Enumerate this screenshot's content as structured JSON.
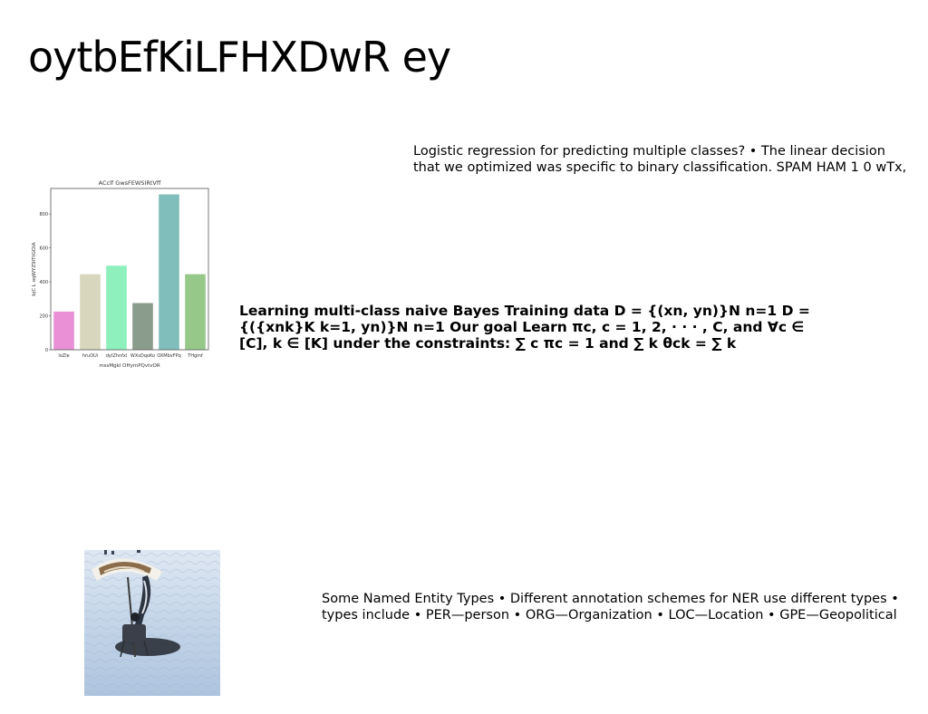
{
  "slide": {
    "title": "oytbEfKiLFHXDwR ey",
    "paragraphs": {
      "top": "Logistic regression for predicting multiple classes? • The linear decision that we optimized was specific to binary classification. SPAM HAM 1 0 wTx,",
      "middle": "Learning multi-class naive Bayes Training data D = {(xn, yn)}N n=1 D = {({xnk}K k=1, yn)}N n=1 Our goal Learn πc, c = 1, 2, · · · , C, and ∀c ∈ [C], k ∈ [K] under the constraints: ∑ c πc = 1 and ∑ k θck = ∑ k",
      "bottom": "Some Named Entity Types • Different annotation schemes for NER use different types • types include • PER—person • ORG—Organization • LOC—Location • GPE—Geopolitical"
    }
  },
  "chart_data": {
    "type": "bar",
    "title": "ACclf GwsFEWSIRtVff",
    "xlabel": "mssMgkl OHymPQvtvOR",
    "ylabel": "bjC L oqWYZ9lTtGOIA",
    "categories": [
      "loZle",
      "hruOUi",
      "dyIZhnfxl",
      "WXsDqoKo",
      "OXMbvFPq",
      "THgmf"
    ],
    "values": [
      225,
      445,
      495,
      275,
      915,
      445
    ],
    "colors": [
      "#e990d6",
      "#d8d6bc",
      "#8ef0bc",
      "#8a9c8c",
      "#80bebc",
      "#96c88a"
    ],
    "ylim": [
      0,
      950
    ],
    "yticks": [
      0,
      200,
      400,
      600,
      800
    ],
    "grid": false,
    "legend": "none"
  },
  "image": {
    "subject": "beach-umbrella-photo"
  }
}
